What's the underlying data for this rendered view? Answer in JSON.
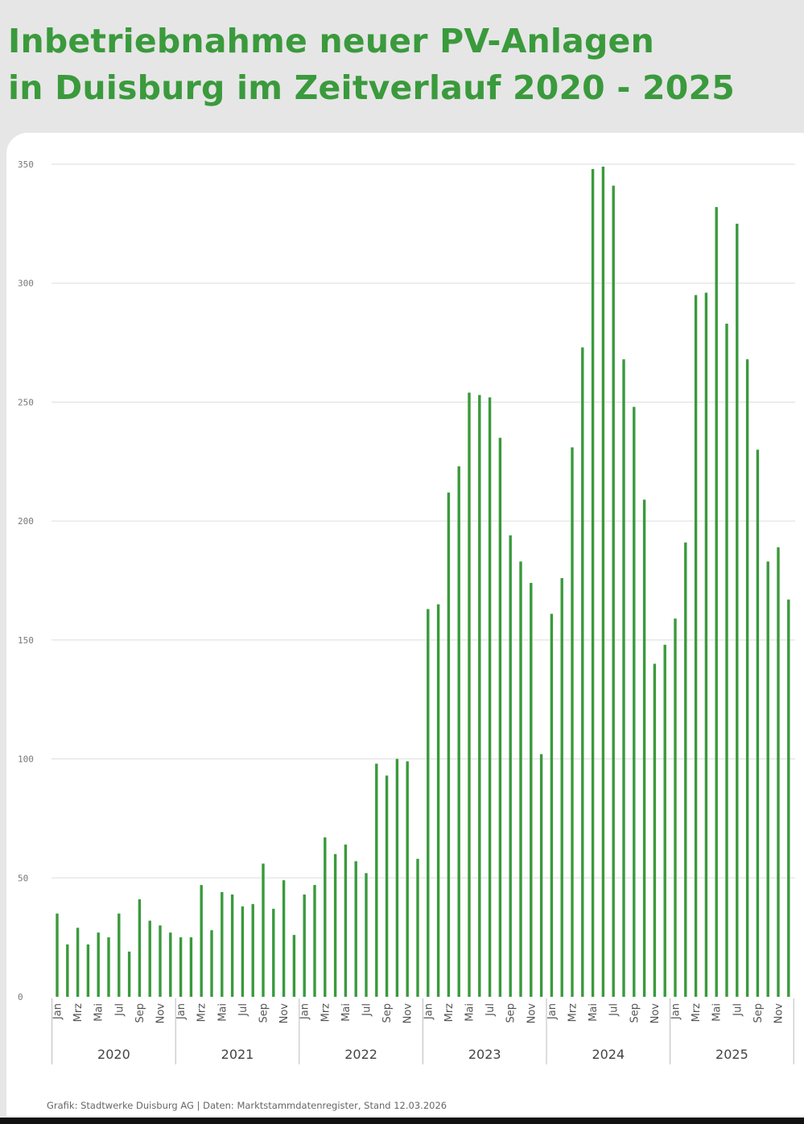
{
  "title_lines": [
    "Inbetriebnahme neuer PV-Anlagen",
    "in Duisburg im Zeitverlauf 2020 - 2025"
  ],
  "source": "Grafik: Stadtwerke Duisburg AG | Daten: Marktstammdatenregister, Stand 12.03.2026",
  "colors": {
    "bar": "#3a9a3c",
    "title": "#3a9a3c"
  },
  "chart_data": {
    "type": "bar",
    "title": "Inbetriebnahme neuer PV-Anlagen in Duisburg im Zeitverlauf 2020 - 2025",
    "xlabel": "",
    "ylabel": "",
    "ylim": [
      0,
      350
    ],
    "yticks": [
      0,
      50,
      100,
      150,
      200,
      250,
      300,
      350
    ],
    "grid": true,
    "legend": "none",
    "month_labels": [
      "Jan",
      "",
      "Mrz",
      "",
      "Mai",
      "",
      "Jul",
      "",
      "Sep",
      "",
      "Nov",
      ""
    ],
    "years": [
      "2020",
      "2021",
      "2022",
      "2023",
      "2024",
      "2025"
    ],
    "categories": [
      "Jan 2020",
      "Feb 2020",
      "Mrz 2020",
      "Apr 2020",
      "Mai 2020",
      "Jun 2020",
      "Jul 2020",
      "Aug 2020",
      "Sep 2020",
      "Okt 2020",
      "Nov 2020",
      "Dez 2020",
      "Jan 2021",
      "Feb 2021",
      "Mrz 2021",
      "Apr 2021",
      "Mai 2021",
      "Jun 2021",
      "Jul 2021",
      "Aug 2021",
      "Sep 2021",
      "Okt 2021",
      "Nov 2021",
      "Dez 2021",
      "Jan 2022",
      "Feb 2022",
      "Mrz 2022",
      "Apr 2022",
      "Mai 2022",
      "Jun 2022",
      "Jul 2022",
      "Aug 2022",
      "Sep 2022",
      "Okt 2022",
      "Nov 2022",
      "Dez 2022",
      "Jan 2023",
      "Feb 2023",
      "Mrz 2023",
      "Apr 2023",
      "Mai 2023",
      "Jun 2023",
      "Jul 2023",
      "Aug 2023",
      "Sep 2023",
      "Okt 2023",
      "Nov 2023",
      "Dez 2023",
      "Jan 2024",
      "Feb 2024",
      "Mrz 2024",
      "Apr 2024",
      "Mai 2024",
      "Jun 2024",
      "Jul 2024",
      "Aug 2024",
      "Sep 2024",
      "Okt 2024",
      "Nov 2024",
      "Dez 2024",
      "Jan 2025",
      "Feb 2025",
      "Mrz 2025",
      "Apr 2025",
      "Mai 2025",
      "Jun 2025",
      "Jul 2025",
      "Aug 2025",
      "Sep 2025",
      "Okt 2025",
      "Nov 2025",
      "Dez 2025"
    ],
    "values": [
      35,
      22,
      29,
      22,
      27,
      25,
      35,
      19,
      41,
      32,
      30,
      27,
      25,
      25,
      47,
      28,
      44,
      43,
      38,
      39,
      56,
      37,
      49,
      26,
      43,
      47,
      67,
      60,
      64,
      57,
      52,
      98,
      93,
      100,
      99,
      58,
      163,
      165,
      212,
      223,
      254,
      253,
      252,
      235,
      194,
      183,
      174,
      102,
      161,
      176,
      231,
      273,
      348,
      349,
      341,
      268,
      248,
      209,
      140,
      148,
      159,
      191,
      295,
      296,
      332,
      283,
      325,
      268,
      230,
      183,
      189,
      167
    ]
  }
}
